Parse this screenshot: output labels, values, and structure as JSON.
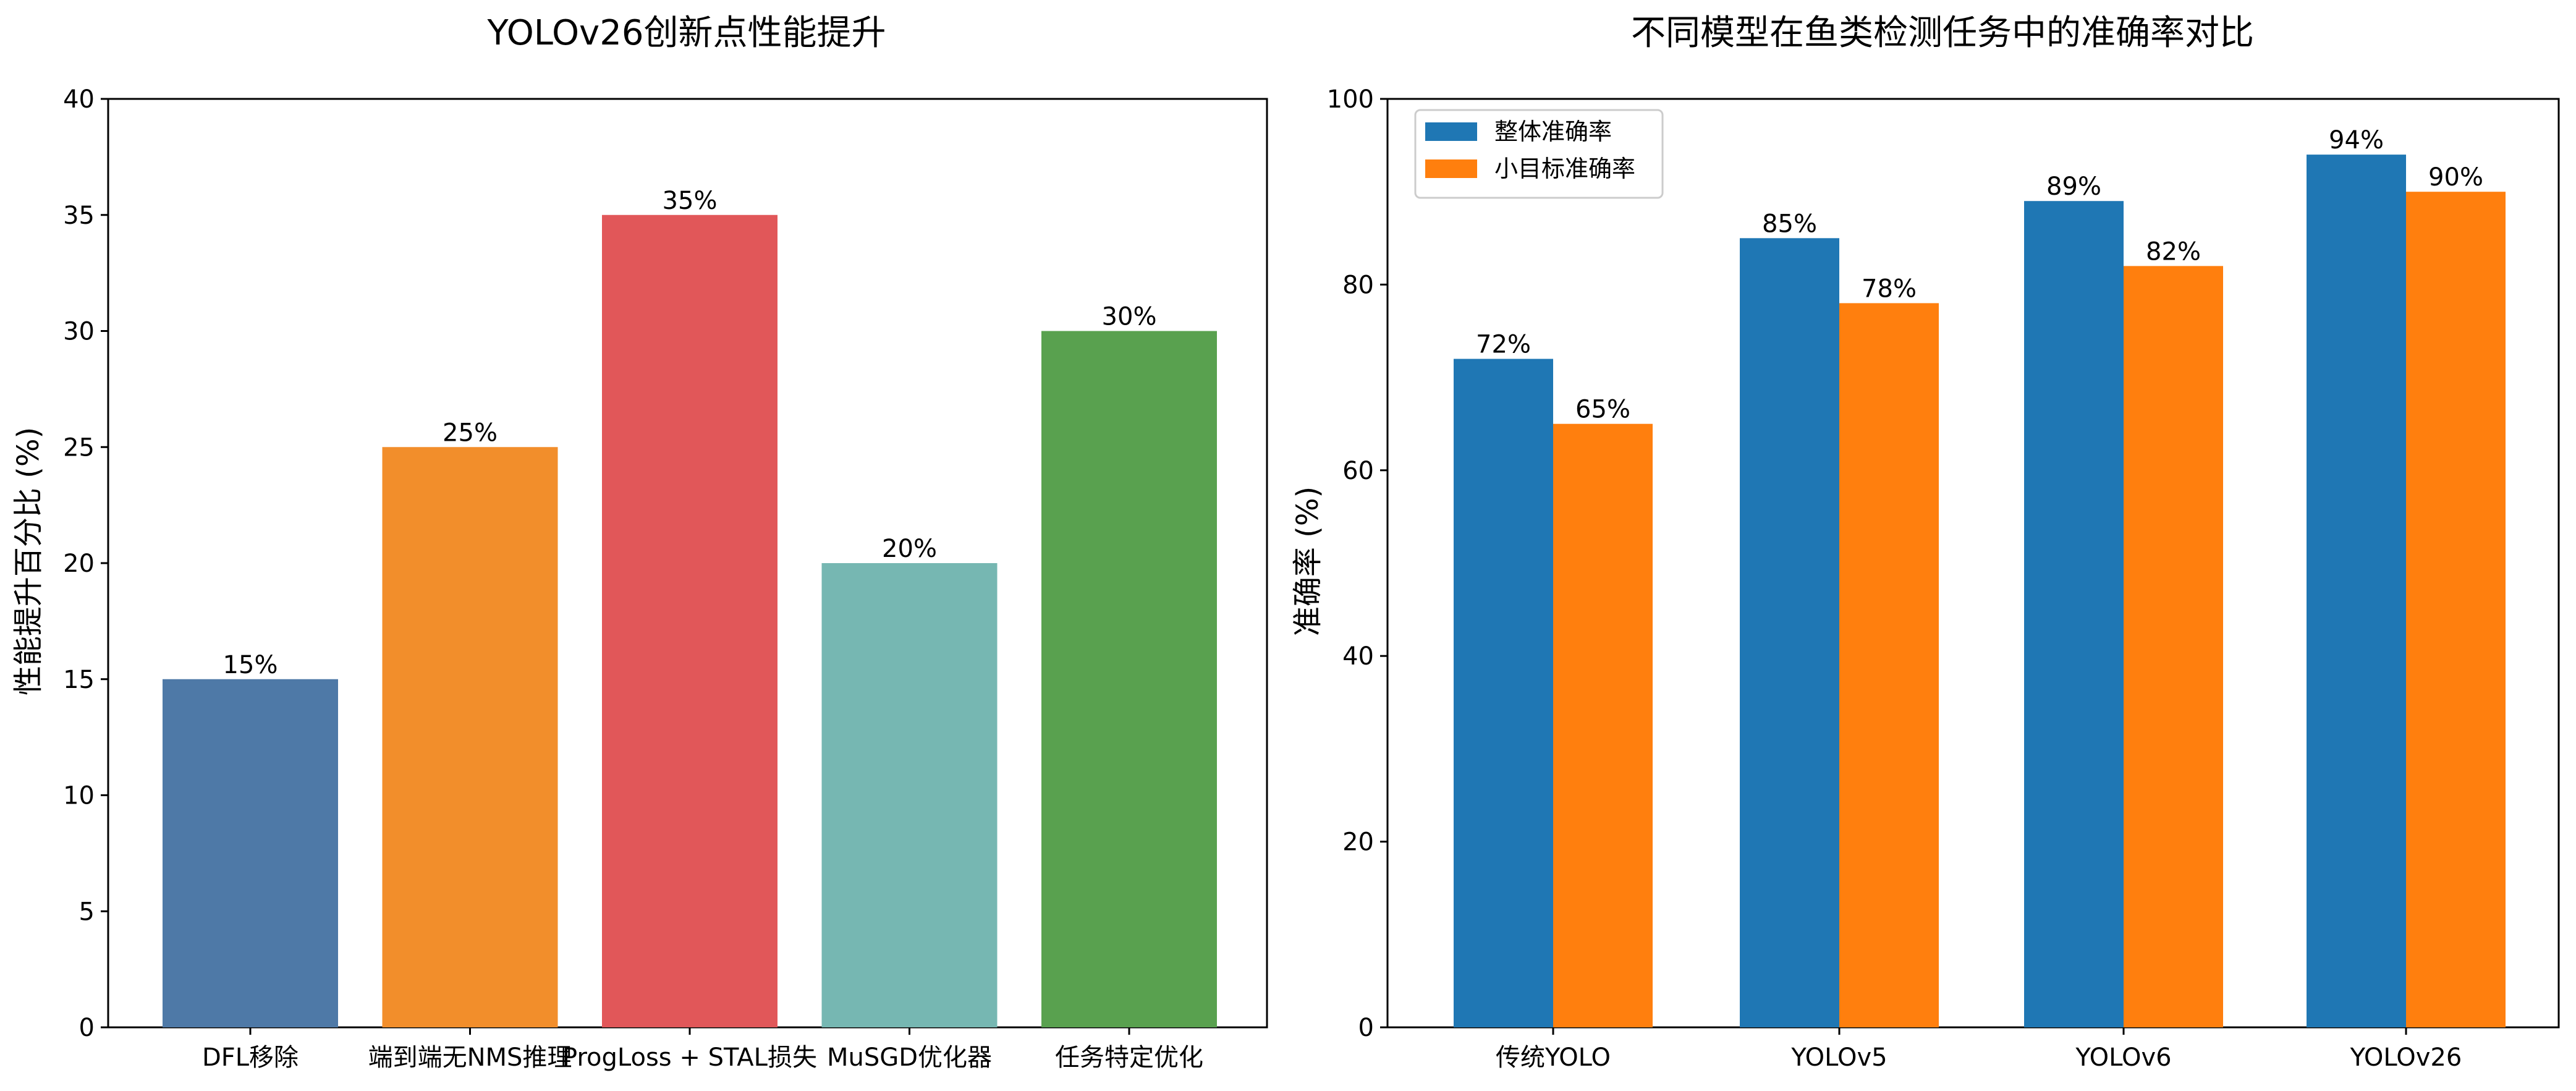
{
  "chart_data": [
    {
      "type": "bar",
      "title": "YOLOv26创新点性能提升",
      "xlabel": "",
      "ylabel": "性能提升百分比 (%)",
      "categories": [
        "DFL移除",
        "端到端无NMS推理",
        "ProgLoss + STAL损失",
        "MuSGD优化器",
        "任务特定优化"
      ],
      "values": [
        15,
        25,
        35,
        20,
        30
      ],
      "value_labels": [
        "15%",
        "25%",
        "35%",
        "20%",
        "30%"
      ],
      "colors": [
        "#4e79a7",
        "#f28e2b",
        "#e15759",
        "#76b7b2",
        "#59a14f"
      ],
      "ylim": [
        0,
        40
      ],
      "yticks": [
        0,
        5,
        10,
        15,
        20,
        25,
        30,
        35,
        40
      ],
      "grid": false
    },
    {
      "type": "bar",
      "title": "不同模型在鱼类检测任务中的准确率对比",
      "xlabel": "",
      "ylabel": "准确率 (%)",
      "categories": [
        "传统YOLO",
        "YOLOv5",
        "YOLOv6",
        "YOLOv26"
      ],
      "series": [
        {
          "name": "整体准确率",
          "values": [
            72,
            85,
            89,
            94
          ],
          "value_labels": [
            "72%",
            "85%",
            "89%",
            "94%"
          ],
          "color": "#1f77b4"
        },
        {
          "name": "小目标准确率",
          "values": [
            65,
            78,
            82,
            90
          ],
          "value_labels": [
            "65%",
            "78%",
            "82%",
            "90%"
          ],
          "color": "#ff7f0e"
        }
      ],
      "ylim": [
        0,
        100
      ],
      "yticks": [
        0,
        20,
        40,
        60,
        80,
        100
      ],
      "legend": "top-left",
      "grid": false
    }
  ]
}
